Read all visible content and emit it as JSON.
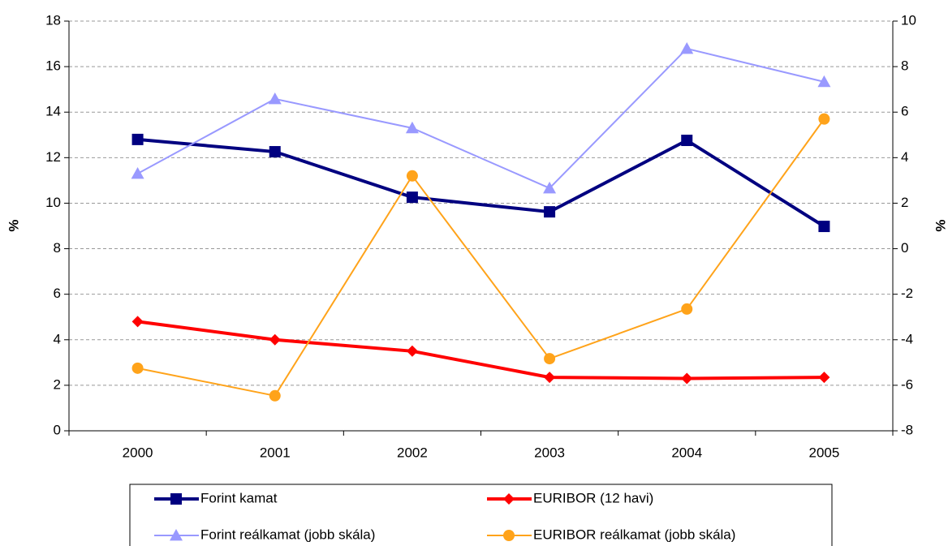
{
  "chart_data": {
    "type": "line",
    "categories": [
      "2000",
      "2001",
      "2002",
      "2003",
      "2004",
      "2005"
    ],
    "ylabel": "%",
    "y2label": "%",
    "ylim": [
      0,
      18
    ],
    "yticks": [
      0,
      2,
      4,
      6,
      8,
      10,
      12,
      14,
      16,
      18
    ],
    "y2lim": [
      -8,
      10
    ],
    "y2ticks": [
      -8,
      -6,
      -4,
      -2,
      0,
      2,
      4,
      6,
      8,
      10
    ],
    "grid": true,
    "legend": "bottom",
    "series": [
      {
        "name": "Forint kamat",
        "color": "#000080",
        "marker": "square",
        "line_width": 4,
        "values": [
          12.8,
          12.26,
          10.26,
          9.62,
          12.76,
          8.98
        ]
      },
      {
        "name": "EURIBOR (12 havi)",
        "color": "#ff0000",
        "marker": "diamond",
        "line_width": 4,
        "values": [
          4.8,
          4.0,
          3.5,
          2.35,
          2.3,
          2.35
        ]
      },
      {
        "name": "Forint reálkamat (jobb skála)",
        "color": "#9999ff",
        "marker": "triangle",
        "line_width": 2,
        "axis": "y2",
        "values": [
          3.3,
          6.58,
          5.3,
          2.66,
          8.79,
          7.33
        ]
      },
      {
        "name": "EURIBOR reálkamat (jobb skála)",
        "color": "#ffa31a",
        "marker": "circle",
        "line_width": 2,
        "axis": "y2",
        "values": [
          -5.25,
          -6.46,
          3.2,
          -4.83,
          -2.65,
          5.7
        ]
      }
    ]
  }
}
